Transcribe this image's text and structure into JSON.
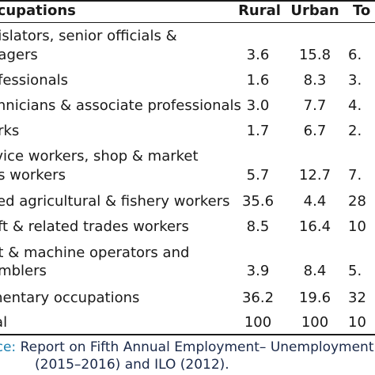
{
  "table": {
    "headers": {
      "occupation": "ccupations",
      "rural": "Rural",
      "urban": "Urban",
      "total": "To"
    },
    "rows": [
      {
        "line1": "gislators, senior officials &",
        "line2": "nagers",
        "rural": "3.6",
        "urban": "15.8",
        "total": "6."
      },
      {
        "line1": "ofessionals",
        "line2": "",
        "rural": "1.6",
        "urban": "8.3",
        "total": "3."
      },
      {
        "line1": "chnicians & associate professionals",
        "line2": "",
        "rural": "3.0",
        "urban": "7.7",
        "total": "4."
      },
      {
        "line1": "erks",
        "line2": "",
        "rural": "1.7",
        "urban": "6.7",
        "total": "2."
      },
      {
        "line1": "rvice workers, shop & market",
        "line2": "es workers",
        "rural": "5.7",
        "urban": "12.7",
        "total": "7."
      },
      {
        "line1": "lled agricultural & fishery workers",
        "line2": "",
        "rural": "35.6",
        "urban": "4.4",
        "total": "28"
      },
      {
        "line1": "aft & related trades workers",
        "line2": "",
        "rural": "8.5",
        "urban": "16.4",
        "total": "10"
      },
      {
        "line1": "nt & machine operators and",
        "line2": "emblers",
        "rural": "3.9",
        "urban": "8.4",
        "total": "5."
      },
      {
        "line1": "mentary occupations",
        "line2": "",
        "rural": "36.2",
        "urban": "19.6",
        "total": "32"
      },
      {
        "line1": "tal",
        "line2": "",
        "rural": "100",
        "urban": "100",
        "total": "10"
      }
    ]
  },
  "source": {
    "label": "rce:",
    "line1": "Report on Fifth Annual Employment– Unemployment Su",
    "line2": "(2015–2016) and ILO (2012)."
  },
  "colors": {
    "text": "#1a1a1a",
    "source_label": "#1a7fb0",
    "source_text": "#1b2a4a"
  }
}
